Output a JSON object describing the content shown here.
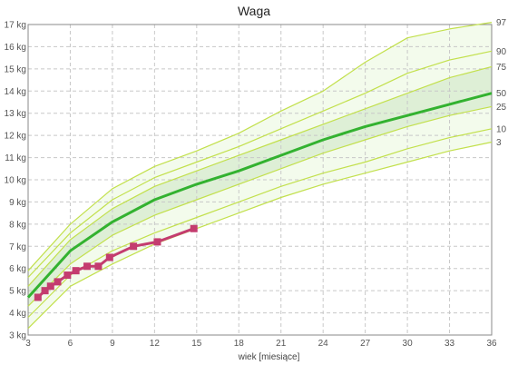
{
  "chart_data": {
    "type": "line",
    "title": "Waga",
    "xlabel": "wiek [miesiące]",
    "ylabel": "",
    "xlim": [
      3,
      36
    ],
    "ylim": [
      3,
      17
    ],
    "x_ticks": [
      "3",
      "6",
      "9",
      "12",
      "15",
      "18",
      "21",
      "24",
      "27",
      "30",
      "33",
      "36"
    ],
    "y_ticks": [
      "3 kg",
      "4 kg",
      "5 kg",
      "6 kg",
      "7 kg",
      "8 kg",
      "9 kg",
      "10 kg",
      "11 kg",
      "12 kg",
      "13 kg",
      "14 kg",
      "15 kg",
      "16 kg",
      "17 kg"
    ],
    "grid": true,
    "percentile_x": [
      3,
      6,
      9,
      12,
      15,
      18,
      21,
      24,
      27,
      30,
      33,
      36
    ],
    "percentiles": [
      {
        "label": "3",
        "values": [
          3.3,
          5.2,
          6.2,
          7.1,
          7.8,
          8.5,
          9.2,
          9.8,
          10.3,
          10.8,
          11.3,
          11.7
        ]
      },
      {
        "label": "10",
        "values": [
          3.8,
          5.7,
          6.8,
          7.6,
          8.3,
          9.0,
          9.7,
          10.3,
          10.8,
          11.4,
          11.9,
          12.3
        ]
      },
      {
        "label": "25",
        "values": [
          4.3,
          6.2,
          7.5,
          8.4,
          9.1,
          9.8,
          10.5,
          11.2,
          11.8,
          12.4,
          12.9,
          13.3
        ]
      },
      {
        "label": "50",
        "values": [
          4.7,
          6.8,
          8.1,
          9.1,
          9.8,
          10.4,
          11.1,
          11.8,
          12.4,
          12.9,
          13.4,
          13.9
        ]
      },
      {
        "label": "75",
        "values": [
          5.2,
          7.3,
          8.7,
          9.7,
          10.4,
          11.1,
          11.8,
          12.5,
          13.2,
          13.9,
          14.6,
          15.1
        ]
      },
      {
        "label": "90",
        "values": [
          5.6,
          7.6,
          9.1,
          10.1,
          10.8,
          11.5,
          12.3,
          13.1,
          13.9,
          14.8,
          15.4,
          15.8
        ]
      },
      {
        "label": "97",
        "values": [
          5.9,
          8.0,
          9.6,
          10.6,
          11.3,
          12.1,
          13.1,
          14.0,
          15.3,
          16.4,
          16.8,
          17.1
        ]
      }
    ],
    "series": [
      {
        "values": [
          [
            3.7,
            4.7
          ],
          [
            4.2,
            5.0
          ],
          [
            4.6,
            5.2
          ],
          [
            5.1,
            5.4
          ],
          [
            5.8,
            5.7
          ],
          [
            6.4,
            5.9
          ],
          [
            7.2,
            6.1
          ],
          [
            8.0,
            6.1
          ],
          [
            8.8,
            6.5
          ],
          [
            10.5,
            7.0
          ],
          [
            12.2,
            7.2
          ],
          [
            14.8,
            7.8
          ]
        ]
      }
    ],
    "colors": {
      "outer_band": "#f3fbec",
      "inner_band": "#deefd6",
      "percentile_line": "#c2e04c",
      "median_line": "#33b230",
      "measurement_line": "#c43c6f",
      "measurement_point": "#c43c6f",
      "grid": "#c8c8c8",
      "axis": "#888888"
    }
  }
}
